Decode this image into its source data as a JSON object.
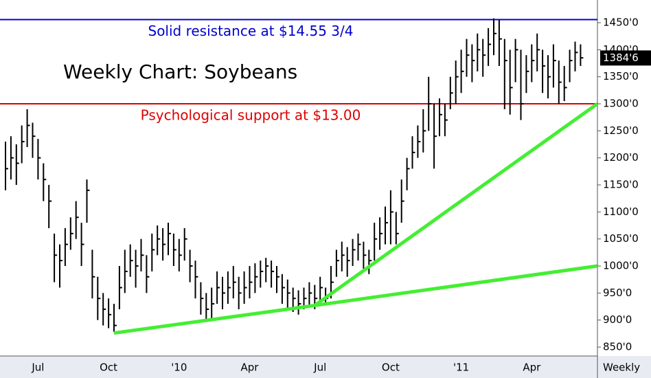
{
  "chart_data": {
    "type": "ohlc",
    "title": "Weekly Chart: Soybeans",
    "x_label": "Weekly",
    "categories": [
      null,
      null,
      null,
      null,
      null,
      null,
      "Jul",
      null,
      null,
      null,
      null,
      null,
      null,
      null,
      null,
      null,
      null,
      null,
      null,
      "Oct",
      null,
      null,
      null,
      null,
      null,
      null,
      null,
      null,
      null,
      null,
      null,
      null,
      "'10",
      null,
      null,
      null,
      null,
      null,
      null,
      null,
      null,
      null,
      null,
      null,
      null,
      "Apr",
      null,
      null,
      null,
      null,
      null,
      null,
      null,
      null,
      null,
      null,
      null,
      null,
      "Jul",
      null,
      null,
      null,
      null,
      null,
      null,
      null,
      null,
      null,
      null,
      null,
      null,
      "Oct",
      null,
      null,
      null,
      null,
      null,
      null,
      null,
      null,
      null,
      null,
      null,
      null,
      "'11",
      null,
      null,
      null,
      null,
      null,
      null,
      null,
      null,
      null,
      null,
      null,
      null,
      "Apr",
      null,
      null,
      null,
      null,
      null,
      null,
      null,
      null,
      null
    ],
    "color": "#000000",
    "high": [
      1230,
      1240,
      1225,
      1260,
      1290,
      1265,
      1235,
      1190,
      1150,
      1060,
      1040,
      1070,
      1090,
      1120,
      1080,
      1160,
      1030,
      980,
      950,
      940,
      930,
      1000,
      1030,
      1040,
      1030,
      1050,
      1020,
      1060,
      1075,
      1070,
      1080,
      1060,
      1050,
      1070,
      1030,
      1010,
      970,
      950,
      960,
      990,
      980,
      990,
      1000,
      980,
      990,
      1000,
      1005,
      1010,
      1015,
      1010,
      1000,
      985,
      975,
      960,
      955,
      960,
      970,
      965,
      980,
      960,
      1000,
      1030,
      1045,
      1035,
      1050,
      1060,
      1045,
      1030,
      1080,
      1090,
      1110,
      1140,
      1100,
      1160,
      1200,
      1240,
      1260,
      1290,
      1350,
      1300,
      1310,
      1300,
      1350,
      1380,
      1400,
      1420,
      1410,
      1430,
      1420,
      1440,
      1458,
      1455,
      1420,
      1400,
      1420,
      1400,
      1390,
      1410,
      1430,
      1400,
      1390,
      1410,
      1380,
      1370,
      1400,
      1415,
      1410
    ],
    "low": [
      1140,
      1160,
      1150,
      1190,
      1220,
      1200,
      1160,
      1120,
      1070,
      970,
      960,
      1000,
      1030,
      1050,
      1000,
      1080,
      940,
      900,
      890,
      885,
      878,
      920,
      950,
      980,
      960,
      990,
      950,
      990,
      1020,
      1010,
      1020,
      1000,
      990,
      1010,
      970,
      940,
      910,
      900,
      900,
      930,
      920,
      930,
      940,
      920,
      930,
      940,
      950,
      960,
      970,
      960,
      950,
      930,
      920,
      915,
      910,
      920,
      925,
      920,
      930,
      928,
      940,
      980,
      990,
      980,
      1000,
      1010,
      995,
      985,
      1010,
      1030,
      1040,
      1040,
      1040,
      1080,
      1140,
      1180,
      1200,
      1210,
      1250,
      1180,
      1240,
      1240,
      1290,
      1300,
      1320,
      1350,
      1340,
      1360,
      1350,
      1370,
      1390,
      1370,
      1290,
      1280,
      1340,
      1270,
      1320,
      1340,
      1360,
      1320,
      1310,
      1330,
      1300,
      1305,
      1340,
      1360,
      1370
    ],
    "close": [
      1180,
      1200,
      1190,
      1230,
      1260,
      1240,
      1200,
      1160,
      1120,
      1020,
      1010,
      1040,
      1060,
      1090,
      1040,
      1140,
      980,
      940,
      920,
      910,
      890,
      960,
      990,
      1010,
      1000,
      1020,
      980,
      1030,
      1050,
      1040,
      1060,
      1030,
      1020,
      1050,
      1000,
      980,
      940,
      920,
      930,
      960,
      950,
      960,
      970,
      950,
      960,
      970,
      980,
      990,
      1000,
      990,
      980,
      960,
      950,
      940,
      930,
      940,
      950,
      940,
      960,
      940,
      970,
      1010,
      1020,
      1010,
      1030,
      1040,
      1020,
      1010,
      1050,
      1060,
      1080,
      1100,
      1060,
      1120,
      1180,
      1210,
      1230,
      1250,
      1300,
      1240,
      1280,
      1270,
      1320,
      1350,
      1360,
      1390,
      1380,
      1400,
      1390,
      1410,
      1430,
      1420,
      1380,
      1330,
      1400,
      1300,
      1360,
      1380,
      1400,
      1370,
      1350,
      1380,
      1340,
      1330,
      1380,
      1395,
      1385
    ],
    "ylim": [
      833.5,
      1492
    ],
    "yticks": [
      {
        "value": 850,
        "label": "850'0"
      },
      {
        "value": 900,
        "label": "900'0"
      },
      {
        "value": 950,
        "label": "950'0"
      },
      {
        "value": 1000,
        "label": "1000'0"
      },
      {
        "value": 1050,
        "label": "1050'0"
      },
      {
        "value": 1100,
        "label": "1100'0"
      },
      {
        "value": 1150,
        "label": "1150'0"
      },
      {
        "value": 1200,
        "label": "1200'0"
      },
      {
        "value": 1250,
        "label": "1250'0"
      },
      {
        "value": 1300,
        "label": "1300'0"
      },
      {
        "value": 1350,
        "label": "1350'0"
      },
      {
        "value": 1400,
        "label": "1400'0"
      },
      {
        "value": 1450,
        "label": "1450'0"
      }
    ],
    "last_price": {
      "value": 1384.75,
      "label": "1384'6"
    },
    "levels": [
      {
        "value": 1455.75,
        "color": "#0000cc",
        "label": "Solid resistance at $14.55 3/4"
      },
      {
        "value": 1300,
        "color": "#dd0000",
        "label": "Psychological support at $13.00"
      }
    ],
    "trendlines": [
      {
        "color": "#44ee33",
        "x": [
          20,
          57,
          109.1
        ],
        "values": [
          876,
          927,
          1000
        ]
      },
      {
        "color": "#44ee33",
        "x": [
          57,
          109.1
        ],
        "values": [
          927,
          1300
        ]
      }
    ]
  }
}
